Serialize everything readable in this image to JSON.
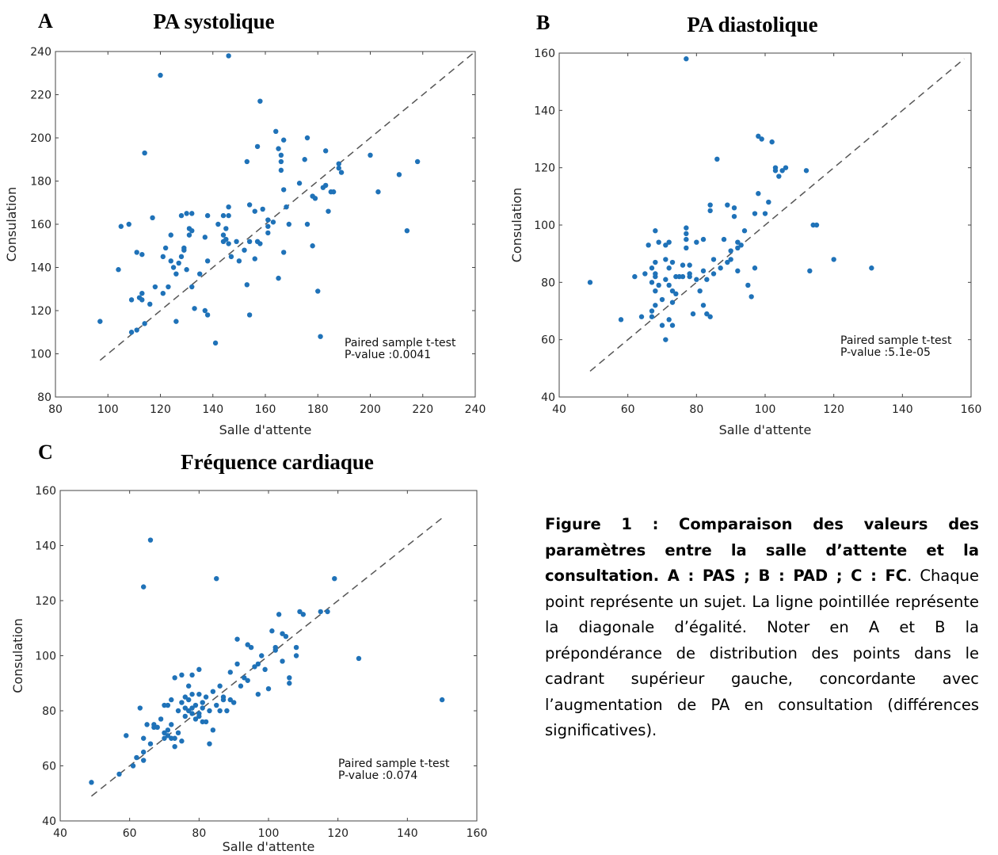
{
  "chart_data": [
    {
      "type": "scatter",
      "panel": "A",
      "title": "PA systolique",
      "xlabel": "Salle d'attente",
      "ylabel": "Consulation",
      "xlim": [
        80,
        240
      ],
      "ylim": [
        80,
        240
      ],
      "xticks": [
        80,
        100,
        120,
        140,
        160,
        180,
        200,
        220,
        240
      ],
      "yticks": [
        80,
        100,
        120,
        140,
        160,
        180,
        200,
        220,
        240
      ],
      "diagonal": [
        97,
        240
      ],
      "annotation": [
        "Paired sample t-test",
        "P-value :0.0041"
      ],
      "points": [
        [
          97,
          115
        ],
        [
          104,
          139
        ],
        [
          105,
          159
        ],
        [
          108,
          160
        ],
        [
          109,
          110
        ],
        [
          109,
          125
        ],
        [
          111,
          147
        ],
        [
          111,
          111
        ],
        [
          112,
          126
        ],
        [
          113,
          128
        ],
        [
          113,
          125
        ],
        [
          113,
          146
        ],
        [
          114,
          114
        ],
        [
          114,
          193
        ],
        [
          116,
          123
        ],
        [
          117,
          163
        ],
        [
          118,
          131
        ],
        [
          120,
          229
        ],
        [
          121,
          145
        ],
        [
          121,
          128
        ],
        [
          122,
          149
        ],
        [
          123,
          131
        ],
        [
          124,
          143
        ],
        [
          124,
          155
        ],
        [
          125,
          140
        ],
        [
          126,
          115
        ],
        [
          126,
          137
        ],
        [
          127,
          142
        ],
        [
          128,
          164
        ],
        [
          128,
          145
        ],
        [
          129,
          149
        ],
        [
          129,
          148
        ],
        [
          130,
          139
        ],
        [
          130,
          165
        ],
        [
          131,
          158
        ],
        [
          131,
          155
        ],
        [
          132,
          157
        ],
        [
          132,
          165
        ],
        [
          132,
          131
        ],
        [
          133,
          121
        ],
        [
          135,
          137
        ],
        [
          137,
          120
        ],
        [
          137,
          154
        ],
        [
          138,
          143
        ],
        [
          138,
          164
        ],
        [
          138,
          118
        ],
        [
          141,
          105
        ],
        [
          142,
          160
        ],
        [
          144,
          164
        ],
        [
          144,
          152
        ],
        [
          144,
          155
        ],
        [
          145,
          158
        ],
        [
          145,
          153
        ],
        [
          146,
          151
        ],
        [
          146,
          164
        ],
        [
          146,
          168
        ],
        [
          146,
          238
        ],
        [
          147,
          145
        ],
        [
          149,
          152
        ],
        [
          150,
          143
        ],
        [
          152,
          148
        ],
        [
          153,
          189
        ],
        [
          153,
          132
        ],
        [
          154,
          118
        ],
        [
          154,
          152
        ],
        [
          154,
          169
        ],
        [
          156,
          166
        ],
        [
          156,
          144
        ],
        [
          157,
          152
        ],
        [
          157,
          196
        ],
        [
          158,
          217
        ],
        [
          158,
          151
        ],
        [
          159,
          167
        ],
        [
          161,
          159
        ],
        [
          161,
          156
        ],
        [
          161,
          162
        ],
        [
          163,
          161
        ],
        [
          164,
          203
        ],
        [
          165,
          135
        ],
        [
          165,
          195
        ],
        [
          166,
          189
        ],
        [
          166,
          185
        ],
        [
          166,
          192
        ],
        [
          167,
          176
        ],
        [
          167,
          199
        ],
        [
          167,
          147
        ],
        [
          168,
          168
        ],
        [
          169,
          160
        ],
        [
          173,
          179
        ],
        [
          175,
          190
        ],
        [
          176,
          160
        ],
        [
          176,
          200
        ],
        [
          178,
          173
        ],
        [
          178,
          150
        ],
        [
          179,
          172
        ],
        [
          180,
          129
        ],
        [
          181,
          108
        ],
        [
          182,
          177
        ],
        [
          183,
          194
        ],
        [
          183,
          178
        ],
        [
          184,
          166
        ],
        [
          185,
          175
        ],
        [
          186,
          175
        ],
        [
          188,
          186
        ],
        [
          188,
          188
        ],
        [
          189,
          184
        ],
        [
          200,
          192
        ],
        [
          203,
          175
        ],
        [
          211,
          183
        ],
        [
          214,
          157
        ],
        [
          218,
          189
        ]
      ]
    },
    {
      "type": "scatter",
      "panel": "B",
      "title": "PA diastolique",
      "xlabel": "Salle d'attente",
      "ylabel": "Consulation",
      "xlim": [
        40,
        160
      ],
      "ylim": [
        40,
        160
      ],
      "xticks": [
        40,
        60,
        80,
        100,
        120,
        140,
        160
      ],
      "yticks": [
        40,
        60,
        80,
        100,
        120,
        140,
        160
      ],
      "diagonal": [
        49,
        158
      ],
      "annotation": [
        "Paired sample t-test",
        "P-value :5.1e-05"
      ],
      "points": [
        [
          49,
          80
        ],
        [
          58,
          67
        ],
        [
          62,
          82
        ],
        [
          64,
          68
        ],
        [
          65,
          83
        ],
        [
          66,
          93
        ],
        [
          67,
          70
        ],
        [
          67,
          68
        ],
        [
          67,
          80
        ],
        [
          67,
          85
        ],
        [
          68,
          87
        ],
        [
          68,
          83
        ],
        [
          68,
          98
        ],
        [
          68,
          82
        ],
        [
          68,
          77
        ],
        [
          68,
          72
        ],
        [
          69,
          79
        ],
        [
          69,
          94
        ],
        [
          70,
          65
        ],
        [
          70,
          74
        ],
        [
          71,
          60
        ],
        [
          71,
          93
        ],
        [
          71,
          81
        ],
        [
          71,
          88
        ],
        [
          72,
          94
        ],
        [
          72,
          79
        ],
        [
          72,
          85
        ],
        [
          72,
          67
        ],
        [
          73,
          87
        ],
        [
          73,
          73
        ],
        [
          73,
          65
        ],
        [
          73,
          77
        ],
        [
          74,
          82
        ],
        [
          74,
          76
        ],
        [
          75,
          82
        ],
        [
          76,
          86
        ],
        [
          76,
          82
        ],
        [
          77,
          95
        ],
        [
          77,
          97
        ],
        [
          77,
          99
        ],
        [
          77,
          158
        ],
        [
          77,
          92
        ],
        [
          78,
          82
        ],
        [
          78,
          83
        ],
        [
          78,
          86
        ],
        [
          79,
          69
        ],
        [
          80,
          81
        ],
        [
          80,
          94
        ],
        [
          81,
          77
        ],
        [
          82,
          84
        ],
        [
          82,
          72
        ],
        [
          82,
          95
        ],
        [
          83,
          81
        ],
        [
          83,
          69
        ],
        [
          84,
          68
        ],
        [
          84,
          107
        ],
        [
          84,
          105
        ],
        [
          85,
          88
        ],
        [
          85,
          83
        ],
        [
          86,
          123
        ],
        [
          87,
          85
        ],
        [
          88,
          95
        ],
        [
          89,
          107
        ],
        [
          89,
          87
        ],
        [
          90,
          88
        ],
        [
          90,
          91
        ],
        [
          91,
          106
        ],
        [
          91,
          103
        ],
        [
          92,
          84
        ],
        [
          92,
          92
        ],
        [
          92,
          94
        ],
        [
          93,
          93
        ],
        [
          94,
          98
        ],
        [
          95,
          79
        ],
        [
          96,
          75
        ],
        [
          97,
          85
        ],
        [
          97,
          104
        ],
        [
          98,
          111
        ],
        [
          98,
          131
        ],
        [
          99,
          130
        ],
        [
          100,
          104
        ],
        [
          101,
          108
        ],
        [
          102,
          129
        ],
        [
          103,
          120
        ],
        [
          103,
          119
        ],
        [
          104,
          117
        ],
        [
          105,
          119
        ],
        [
          106,
          120
        ],
        [
          112,
          119
        ],
        [
          113,
          84
        ],
        [
          114,
          100
        ],
        [
          115,
          100
        ],
        [
          120,
          88
        ],
        [
          131,
          85
        ]
      ]
    },
    {
      "type": "scatter",
      "panel": "C",
      "title": "Fréquence cardiaque",
      "xlabel": "Salle d'attente",
      "ylabel": "Consulation",
      "xlim": [
        40,
        160
      ],
      "ylim": [
        40,
        160
      ],
      "xticks": [
        40,
        60,
        80,
        100,
        120,
        140,
        160
      ],
      "yticks": [
        40,
        60,
        80,
        100,
        120,
        140,
        160
      ],
      "diagonal": [
        49,
        150
      ],
      "annotation": [
        "Paired sample t-test",
        "P-value :0.074"
      ],
      "points": [
        [
          49,
          54
        ],
        [
          57,
          57
        ],
        [
          59,
          71
        ],
        [
          61,
          60
        ],
        [
          62,
          63
        ],
        [
          63,
          81
        ],
        [
          64,
          62
        ],
        [
          64,
          65
        ],
        [
          64,
          125
        ],
        [
          64,
          70
        ],
        [
          65,
          75
        ],
        [
          66,
          142
        ],
        [
          66,
          68
        ],
        [
          67,
          74
        ],
        [
          67,
          75
        ],
        [
          68,
          74
        ],
        [
          69,
          77
        ],
        [
          70,
          72
        ],
        [
          70,
          82
        ],
        [
          70,
          70
        ],
        [
          71,
          73
        ],
        [
          71,
          82
        ],
        [
          71,
          71
        ],
        [
          72,
          84
        ],
        [
          72,
          75
        ],
        [
          72,
          70
        ],
        [
          73,
          92
        ],
        [
          73,
          67
        ],
        [
          73,
          70
        ],
        [
          74,
          72
        ],
        [
          74,
          80
        ],
        [
          75,
          93
        ],
        [
          75,
          83
        ],
        [
          75,
          69
        ],
        [
          76,
          85
        ],
        [
          76,
          81
        ],
        [
          76,
          78
        ],
        [
          77,
          89
        ],
        [
          77,
          84
        ],
        [
          77,
          80
        ],
        [
          78,
          93
        ],
        [
          78,
          86
        ],
        [
          78,
          79
        ],
        [
          78,
          81
        ],
        [
          79,
          82
        ],
        [
          79,
          77
        ],
        [
          80,
          95
        ],
        [
          80,
          86
        ],
        [
          80,
          79
        ],
        [
          80,
          78
        ],
        [
          81,
          83
        ],
        [
          81,
          81
        ],
        [
          81,
          76
        ],
        [
          82,
          85
        ],
        [
          82,
          76
        ],
        [
          83,
          68
        ],
        [
          83,
          80
        ],
        [
          84,
          87
        ],
        [
          84,
          73
        ],
        [
          85,
          128
        ],
        [
          85,
          82
        ],
        [
          86,
          89
        ],
        [
          86,
          80
        ],
        [
          87,
          85
        ],
        [
          87,
          84
        ],
        [
          88,
          80
        ],
        [
          89,
          94
        ],
        [
          89,
          84
        ],
        [
          90,
          83
        ],
        [
          91,
          106
        ],
        [
          91,
          97
        ],
        [
          92,
          89
        ],
        [
          93,
          92
        ],
        [
          94,
          104
        ],
        [
          94,
          91
        ],
        [
          95,
          103
        ],
        [
          96,
          96
        ],
        [
          97,
          86
        ],
        [
          97,
          97
        ],
        [
          98,
          100
        ],
        [
          99,
          95
        ],
        [
          100,
          88
        ],
        [
          101,
          109
        ],
        [
          102,
          102
        ],
        [
          102,
          103
        ],
        [
          103,
          115
        ],
        [
          104,
          108
        ],
        [
          104,
          98
        ],
        [
          105,
          107
        ],
        [
          106,
          92
        ],
        [
          106,
          90
        ],
        [
          108,
          100
        ],
        [
          108,
          103
        ],
        [
          109,
          116
        ],
        [
          110,
          115
        ],
        [
          115,
          116
        ],
        [
          117,
          116
        ],
        [
          119,
          128
        ],
        [
          126,
          99
        ],
        [
          150,
          84
        ]
      ]
    }
  ],
  "panel_letters": {
    "a": "A",
    "b": "B",
    "c": "C"
  },
  "colors": {
    "marker": "#1f72b8",
    "diagonal": "#555555",
    "axis": "#444444"
  },
  "caption": {
    "bold": "Figure 1 : Comparaison des valeurs des paramètres entre la salle d’attente et la consultation. A : PAS ; B : PAD ; C : FC",
    "rest": ". Chaque point représente un sujet. La ligne pointillée représente la diagonale d’égalité. Noter en A et B la prépondérance de distribution des points dans le cadrant supérieur gauche, concordante avec l’augmentation de PA en consultation (différences significatives)."
  }
}
